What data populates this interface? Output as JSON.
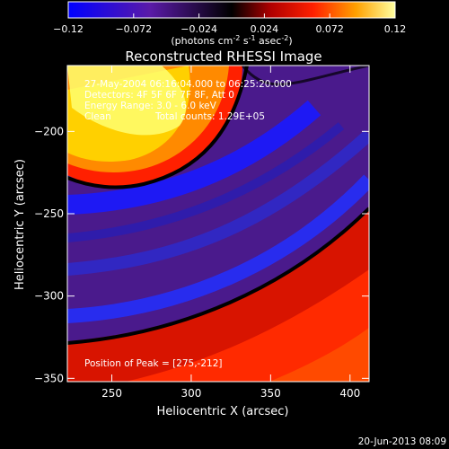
{
  "chart_data": {
    "type": "heatmap",
    "title": "Reconstructed RHESSI Image",
    "xlabel": "Heliocentric X (arcsec)",
    "ylabel": "Heliocentric Y (arcsec)",
    "xlim": [
      222,
      412
    ],
    "ylim": [
      -352,
      -160
    ],
    "x_ticks": [
      250,
      300,
      350,
      400
    ],
    "y_ticks": [
      -200,
      -250,
      -300,
      -350
    ],
    "colorbar": {
      "ticks": [
        "-0.12",
        "-0.072",
        "-0.024",
        "0.024",
        "0.072",
        "0.12"
      ],
      "range": [
        -0.12,
        0.12
      ],
      "label": "(photons cm",
      "label_exp1": "-2",
      "label_mid": " s",
      "label_exp2": "-1",
      "label_end": " asec",
      "label_exp3": "-2",
      "label_close": ")"
    },
    "annotations": {
      "line1": "27-May-2004 06:16:04.000 to 06:25:20.000",
      "line2": "Detectors: 4F 5F 6F 7F 8F, Att 0",
      "line3": "Energy Range: 3.0 - 6.0 keV",
      "line4a": "Clean",
      "line4b": "Total counts: 1.29E+05",
      "peak": "Position of Peak = [275,-212]"
    },
    "peak": {
      "x": 275,
      "y": -212
    },
    "timestamp": "20-Jun-2013 08:09"
  }
}
